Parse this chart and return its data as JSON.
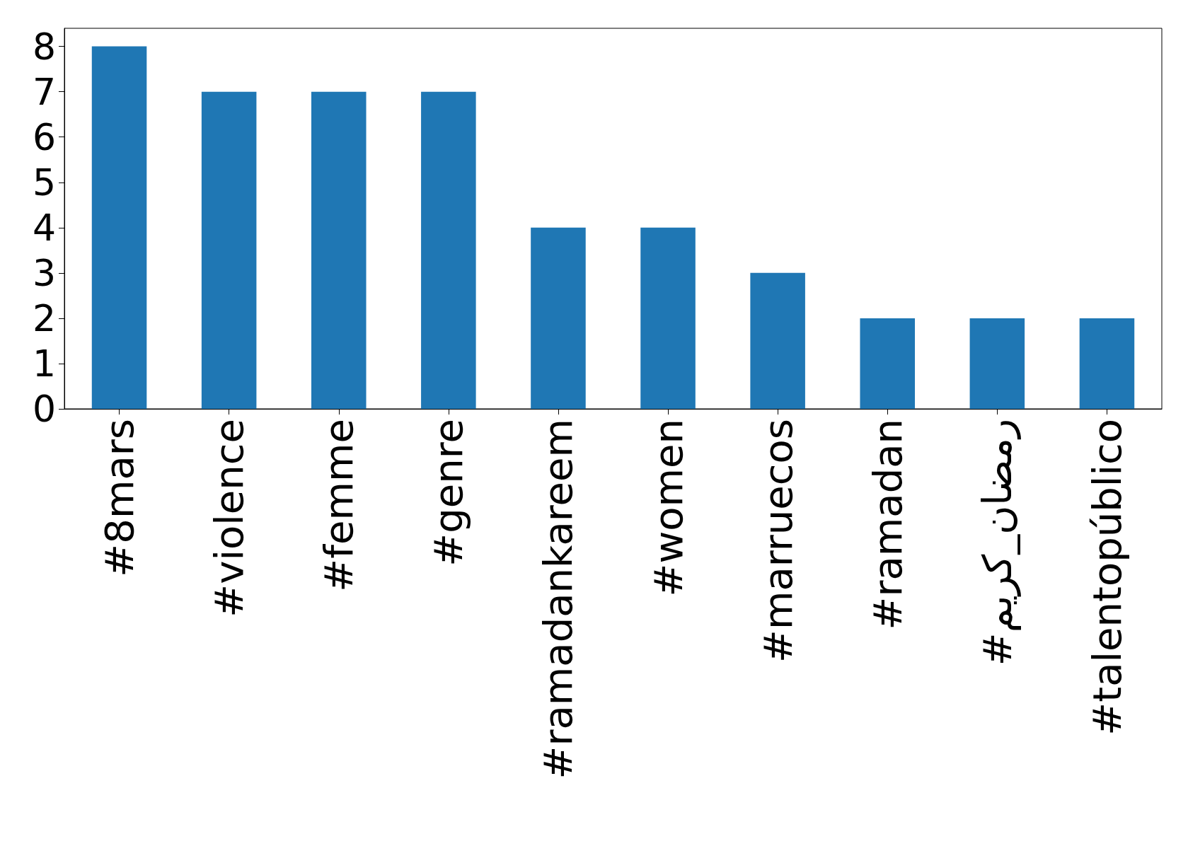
{
  "chart_data": {
    "type": "bar",
    "categories": [
      "#8mars",
      "#violence",
      "#femme",
      "#genre",
      "#ramadankareem",
      "#women",
      "#marruecos",
      "#ramadan",
      "#رمضان_كريم",
      "#talentopúblico"
    ],
    "values": [
      8,
      7,
      7,
      7,
      4,
      4,
      3,
      2,
      2,
      2
    ],
    "color": "#1f77b4",
    "ylim": [
      0,
      8.4
    ],
    "yticks": [
      0,
      1,
      2,
      3,
      4,
      5,
      6,
      7,
      8
    ],
    "grid": false
  }
}
